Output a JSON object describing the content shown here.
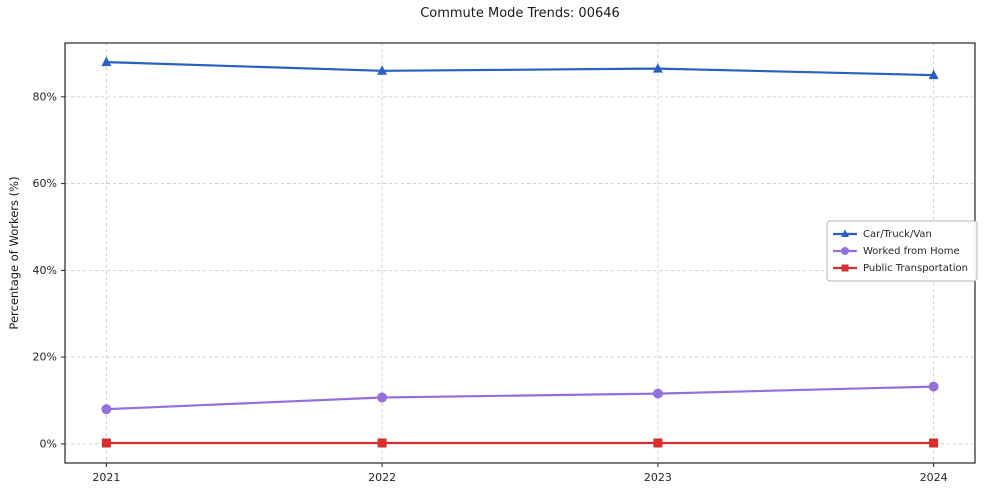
{
  "chart_data": {
    "type": "line",
    "title": "Commute Mode Trends: 00646",
    "xlabel": "",
    "ylabel": "Percentage of Workers (%)",
    "x": [
      2021,
      2022,
      2023,
      2024
    ],
    "xtick_labels": [
      "2021",
      "2022",
      "2023",
      "2024"
    ],
    "xlim": [
      2020.85,
      2024.15
    ],
    "ylim": [
      -4.4,
      92.4
    ],
    "yticks": [
      0,
      20,
      40,
      60,
      80
    ],
    "ytick_labels": [
      "0%",
      "20%",
      "40%",
      "60%",
      "80%"
    ],
    "grid": "dashed-horizontal-and-vertical",
    "grid_color": "#c9c9c9",
    "frame_color": "#262626",
    "legend_position": "center-right",
    "series": [
      {
        "name": "Car/Truck/Van",
        "color": "#2a5fc4",
        "marker": "triangle",
        "values": [
          88,
          86,
          86.5,
          85
        ]
      },
      {
        "name": "Worked from Home",
        "color": "#9370db",
        "marker": "circle",
        "values": [
          8,
          10.7,
          11.6,
          13.2
        ]
      },
      {
        "name": "Public Transportation",
        "color": "#d62f2f",
        "marker": "square",
        "values": [
          0.2,
          0.2,
          0.2,
          0.2
        ]
      }
    ]
  }
}
